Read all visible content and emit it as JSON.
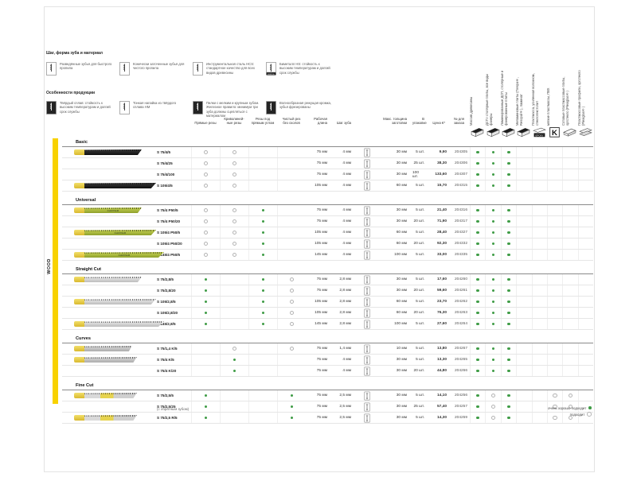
{
  "page": {
    "accent_yellow": "#f8d200",
    "dot_green": "#3f9c46",
    "side_label": "WOOD"
  },
  "legend_top": {
    "group1": {
      "title": "Шаг, форма зуба и материал",
      "items": [
        {
          "icon": "splayed-teeth-blade-icon",
          "text": "Разведённые зубья для быстрого пропила"
        },
        {
          "icon": "taper-ground-blade-icon",
          "text": "Конически заточенные зубья для чистого пропила"
        },
        {
          "icon": "hcs-steel-blade-icon",
          "text": "Инструментальная сталь HCS: стандартное качество для всех видов древесины"
        },
        {
          "icon": "bimetal-blade-icon",
          "text": "Биметалл HS: стойкость к высоким температурам и долгий срок службы"
        }
      ]
    },
    "group2": {
      "title": "Особенности продукции",
      "items": [
        {
          "icon": "carbide-blade-icon",
          "text": "Твёрдый сплав: стойкость к высоким температурам и долгий срок службы"
        },
        {
          "icon": "hm-tip-blade-icon",
          "text": "Тонкая напайка из твёрдого сплава HM"
        },
        {
          "icon": "tooth-contact-blade-icon",
          "text": "Пилки с мелким и крупным зубом. Железное правило: минимум три зуба должны сцепляться с материалом"
        },
        {
          "icon": "wavy-edge-blade-icon",
          "text": "Волнообразная режущая кромка, зубья фрезерованы"
        }
      ]
    }
  },
  "materials": [
    {
      "icon": "solid-wood-board-icon",
      "label": "Массив древесины"
    },
    {
      "icon": "chipboard-icon",
      "label": "ДСП / столярные плиты, все виды фанеры"
    },
    {
      "icon": "laminated-chipboard-icon",
      "label": "Ламинированные ДСП, столярные и фанерованные плиты"
    },
    {
      "icon": "melamine-board-icon",
      "label": "Меламиновые плиты (Trespa®, Resopal®), ламинат"
    },
    {
      "icon": "frp-epoxy-icon",
      "label": "Пластмасса, усиленная волокном, стеклотекстолит"
    },
    {
      "icon": "soft-plastic-pvc-icon",
      "label": "мягкие пластмассы, ПВХ"
    },
    {
      "icon": "honeycomb-plastic-icon",
      "label": "Сотовые пластмассовые плиты, оргстекло (Plexiglas®)"
    },
    {
      "icon": "plastic-profile-icon",
      "label": "Пластмассовые профили, оргстекло (Plexiglas®)"
    }
  ],
  "table": {
    "headers": {
      "straight": "Прямые резы",
      "curved": "Криволиней-\nные резы",
      "right_angle": "Резы под\nпрямым углом",
      "clean": "Чистый рез\nбез сколов",
      "length": "Рабочая\nдлина",
      "pitch": "Шаг зуба",
      "max_thickness": "Макс. толщина\nзаготовки",
      "pack": "В упаковке",
      "price": "Цена €*",
      "order_no": "№ для заказа"
    },
    "sections": [
      {
        "title": "Basic",
        "rows": [
          {
            "code": "S 75/4/5",
            "cuts": [
              "o",
              "o",
              "",
              ""
            ],
            "length": "75 мм",
            "pitch": "4 мм",
            "max_thickness": "30 мм",
            "pack": "5 шт.",
            "price": "9,90",
            "order_no": "204305",
            "materials": [
              "g",
              "g",
              "g",
              "",
              "",
              "",
              "",
              ""
            ],
            "blade": {
              "style": "dark",
              "len": 72,
              "label": ""
            }
          },
          {
            "code": "S 75/4/25",
            "cuts": [
              "o",
              "o",
              "",
              ""
            ],
            "length": "75 мм",
            "pitch": "4 мм",
            "max_thickness": "30 мм",
            "pack": "25 шт.",
            "price": "38,30",
            "order_no": "204306",
            "materials": [
              "g",
              "g",
              "g",
              "",
              "",
              "",
              "",
              ""
            ],
            "blade": null
          },
          {
            "code": "S 75/4/100",
            "cuts": [
              "o",
              "o",
              "",
              ""
            ],
            "length": "75 мм",
            "pitch": "4 мм",
            "max_thickness": "30 мм",
            "pack": "100 шт.",
            "price": "133,60",
            "order_no": "204307",
            "materials": [
              "g",
              "g",
              "g",
              "",
              "",
              "",
              "",
              ""
            ],
            "blade": null
          },
          {
            "code": "S 105/4/5",
            "cuts": [
              "o",
              "o",
              "",
              ""
            ],
            "length": "105 мм",
            "pitch": "4 мм",
            "max_thickness": "60 мм",
            "pack": "5 шт.",
            "price": "15,70",
            "order_no": "204315",
            "materials": [
              "g",
              "g",
              "g",
              "",
              "",
              "",
              "",
              ""
            ],
            "blade": {
              "style": "dark",
              "len": 90,
              "label": ""
            }
          }
        ]
      },
      {
        "title": "Universal",
        "rows": [
          {
            "code": "S 75/4 P50/5",
            "cuts": [
              "o",
              "o",
              "g",
              ""
            ],
            "length": "75 мм",
            "pitch": "4 мм",
            "max_thickness": "30 мм",
            "pack": "5 шт.",
            "price": "21,40",
            "order_no": "204316",
            "materials": [
              "g",
              "g",
              "g",
              "",
              "",
              "",
              "",
              ""
            ],
            "blade": {
              "style": "green",
              "len": 72,
              "label": "CARVER"
            }
          },
          {
            "code": "S 75/4 P50/20",
            "cuts": [
              "o",
              "o",
              "g",
              ""
            ],
            "length": "75 мм",
            "pitch": "4 мм",
            "max_thickness": "30 мм",
            "pack": "20 шт.",
            "price": "71,90",
            "order_no": "204317",
            "materials": [
              "g",
              "g",
              "g",
              "",
              "",
              "",
              "",
              ""
            ],
            "blade": null
          },
          {
            "code": "S 105/4 P50/5",
            "cuts": [
              "o",
              "o",
              "g",
              ""
            ],
            "length": "105 мм",
            "pitch": "4 мм",
            "max_thickness": "60 мм",
            "pack": "5 шт.",
            "price": "28,40",
            "order_no": "204327",
            "materials": [
              "g",
              "g",
              "g",
              "",
              "",
              "",
              "",
              ""
            ],
            "blade": {
              "style": "green",
              "len": 90,
              "label": "CARVER"
            }
          },
          {
            "code": "S 105/4 P50/20",
            "cuts": [
              "o",
              "o",
              "g",
              ""
            ],
            "length": "105 мм",
            "pitch": "4 мм",
            "max_thickness": "60 мм",
            "pack": "20 шт.",
            "price": "92,30",
            "order_no": "204332",
            "materials": [
              "g",
              "g",
              "g",
              "",
              "",
              "",
              "",
              ""
            ],
            "blade": null
          },
          {
            "code": "S 145/4 P50/5",
            "cuts": [
              "o",
              "o",
              "g",
              ""
            ],
            "length": "145 мм",
            "pitch": "4 мм",
            "max_thickness": "100 мм",
            "pack": "5 шт.",
            "price": "33,00",
            "order_no": "204335",
            "materials": [
              "g",
              "g",
              "g",
              "",
              "",
              "",
              "",
              ""
            ],
            "blade": {
              "style": "green",
              "len": 100,
              "label": "CARVER"
            }
          }
        ]
      },
      {
        "title": "Straight Cut",
        "rows": [
          {
            "code": "S 75/2,8/5",
            "cuts": [
              "g",
              "",
              "g",
              "o"
            ],
            "length": "75 мм",
            "pitch": "2,8 мм",
            "max_thickness": "30 мм",
            "pack": "5 шт.",
            "price": "17,60",
            "order_no": "204260",
            "materials": [
              "g",
              "g",
              "g",
              "",
              "",
              "",
              "",
              ""
            ],
            "blade": {
              "style": "silver",
              "len": 72,
              "label": ""
            }
          },
          {
            "code": "S 75/2,8/20",
            "cuts": [
              "g",
              "",
              "g",
              "o"
            ],
            "length": "75 мм",
            "pitch": "2,8 мм",
            "max_thickness": "30 мм",
            "pack": "20 шт.",
            "price": "59,60",
            "order_no": "204261",
            "materials": [
              "g",
              "g",
              "g",
              "",
              "",
              "",
              "",
              ""
            ],
            "blade": null
          },
          {
            "code": "S 105/2,8/5",
            "cuts": [
              "g",
              "",
              "g",
              "o"
            ],
            "length": "105 мм",
            "pitch": "2,8 мм",
            "max_thickness": "60 мм",
            "pack": "5 шт.",
            "price": "23,70",
            "order_no": "204262",
            "materials": [
              "g",
              "g",
              "g",
              "",
              "",
              "",
              "",
              ""
            ],
            "blade": {
              "style": "silver",
              "len": 90,
              "label": ""
            }
          },
          {
            "code": "S 105/2,8/20",
            "cuts": [
              "g",
              "",
              "g",
              "o"
            ],
            "length": "105 мм",
            "pitch": "2,8 мм",
            "max_thickness": "60 мм",
            "pack": "20 шт.",
            "price": "76,30",
            "order_no": "204263",
            "materials": [
              "g",
              "g",
              "g",
              "",
              "",
              "",
              "",
              ""
            ],
            "blade": null
          },
          {
            "code": "S 145/2,8/5",
            "cuts": [
              "g",
              "",
              "g",
              "o"
            ],
            "length": "145 мм",
            "pitch": "2,8 мм",
            "max_thickness": "100 мм",
            "pack": "5 шт.",
            "price": "27,60",
            "order_no": "204264",
            "materials": [
              "g",
              "g",
              "g",
              "",
              "",
              "",
              "",
              ""
            ],
            "blade": {
              "style": "silver",
              "len": 100,
              "label": ""
            }
          }
        ]
      },
      {
        "title": "Curves",
        "rows": [
          {
            "code": "S 75/1,4 K/5",
            "cuts": [
              "",
              "o",
              "",
              "o"
            ],
            "length": "75 мм",
            "pitch": "1,4 мм",
            "max_thickness": "10 мм",
            "pack": "5 шт.",
            "price": "13,80",
            "order_no": "204267",
            "materials": [
              "g",
              "g",
              "g",
              "",
              "",
              "",
              "",
              ""
            ],
            "blade": {
              "style": "gray",
              "len": 60,
              "label": ""
            }
          },
          {
            "code": "S 75/4 K/5",
            "cuts": [
              "",
              "g",
              "",
              ""
            ],
            "length": "75 мм",
            "pitch": "4 мм",
            "max_thickness": "30 мм",
            "pack": "5 шт.",
            "price": "13,30",
            "order_no": "204265",
            "materials": [
              "g",
              "g",
              "g",
              "",
              "",
              "",
              "",
              ""
            ],
            "blade": {
              "style": "gray",
              "len": 66,
              "label": ""
            }
          },
          {
            "code": "S 75/4 K/20",
            "cuts": [
              "",
              "g",
              "",
              ""
            ],
            "length": "75 мм",
            "pitch": "4 мм",
            "max_thickness": "30 мм",
            "pack": "20 шт.",
            "price": "44,80",
            "order_no": "204266",
            "materials": [
              "g",
              "g",
              "g",
              "",
              "",
              "",
              "",
              ""
            ],
            "blade": null
          }
        ]
      },
      {
        "title": "Fine Cut",
        "rows": [
          {
            "code": "S 75/2,5/5",
            "cuts": [
              "g",
              "",
              "",
              "g"
            ],
            "length": "75 мм",
            "pitch": "2,5 мм",
            "max_thickness": "30 мм",
            "pack": "5 шт.",
            "price": "14,10",
            "order_no": "204256",
            "materials": [
              "g",
              "o",
              "g",
              "",
              "",
              "o",
              "o",
              ""
            ],
            "blade": {
              "style": "fine",
              "len": 66,
              "label": ""
            }
          },
          {
            "code": "S 75/2,5/25",
            "cuts": [
              "g",
              "",
              "",
              "g"
            ],
            "length": "75 мм",
            "pitch": "2,5 мм",
            "max_thickness": "30 мм",
            "pack": "25 шт.",
            "price": "57,40",
            "order_no": "204257",
            "materials": [
              "g",
              "o",
              "g",
              "",
              "",
              "o",
              "o",
              ""
            ],
            "blade": null
          },
          {
            "code": "S 75/2,5 R/5",
            "cuts": [
              "g",
              "",
              "",
              "g"
            ],
            "length": "75 мм",
            "pitch": "2,5 мм",
            "max_thickness": "30 мм",
            "pack": "5 шт.",
            "price": "14,30",
            "order_no": "204259",
            "materials": [
              "g",
              "o",
              "g",
              "",
              "",
              "o",
              "o",
              ""
            ],
            "blade": {
              "style": "fine",
              "len": 66,
              "label": ""
            }
          }
        ]
      }
    ],
    "footnote": "(с обратным зубом)",
    "dot_legend": {
      "good": "очень хорошо подходит",
      "ok": "подходит"
    }
  }
}
